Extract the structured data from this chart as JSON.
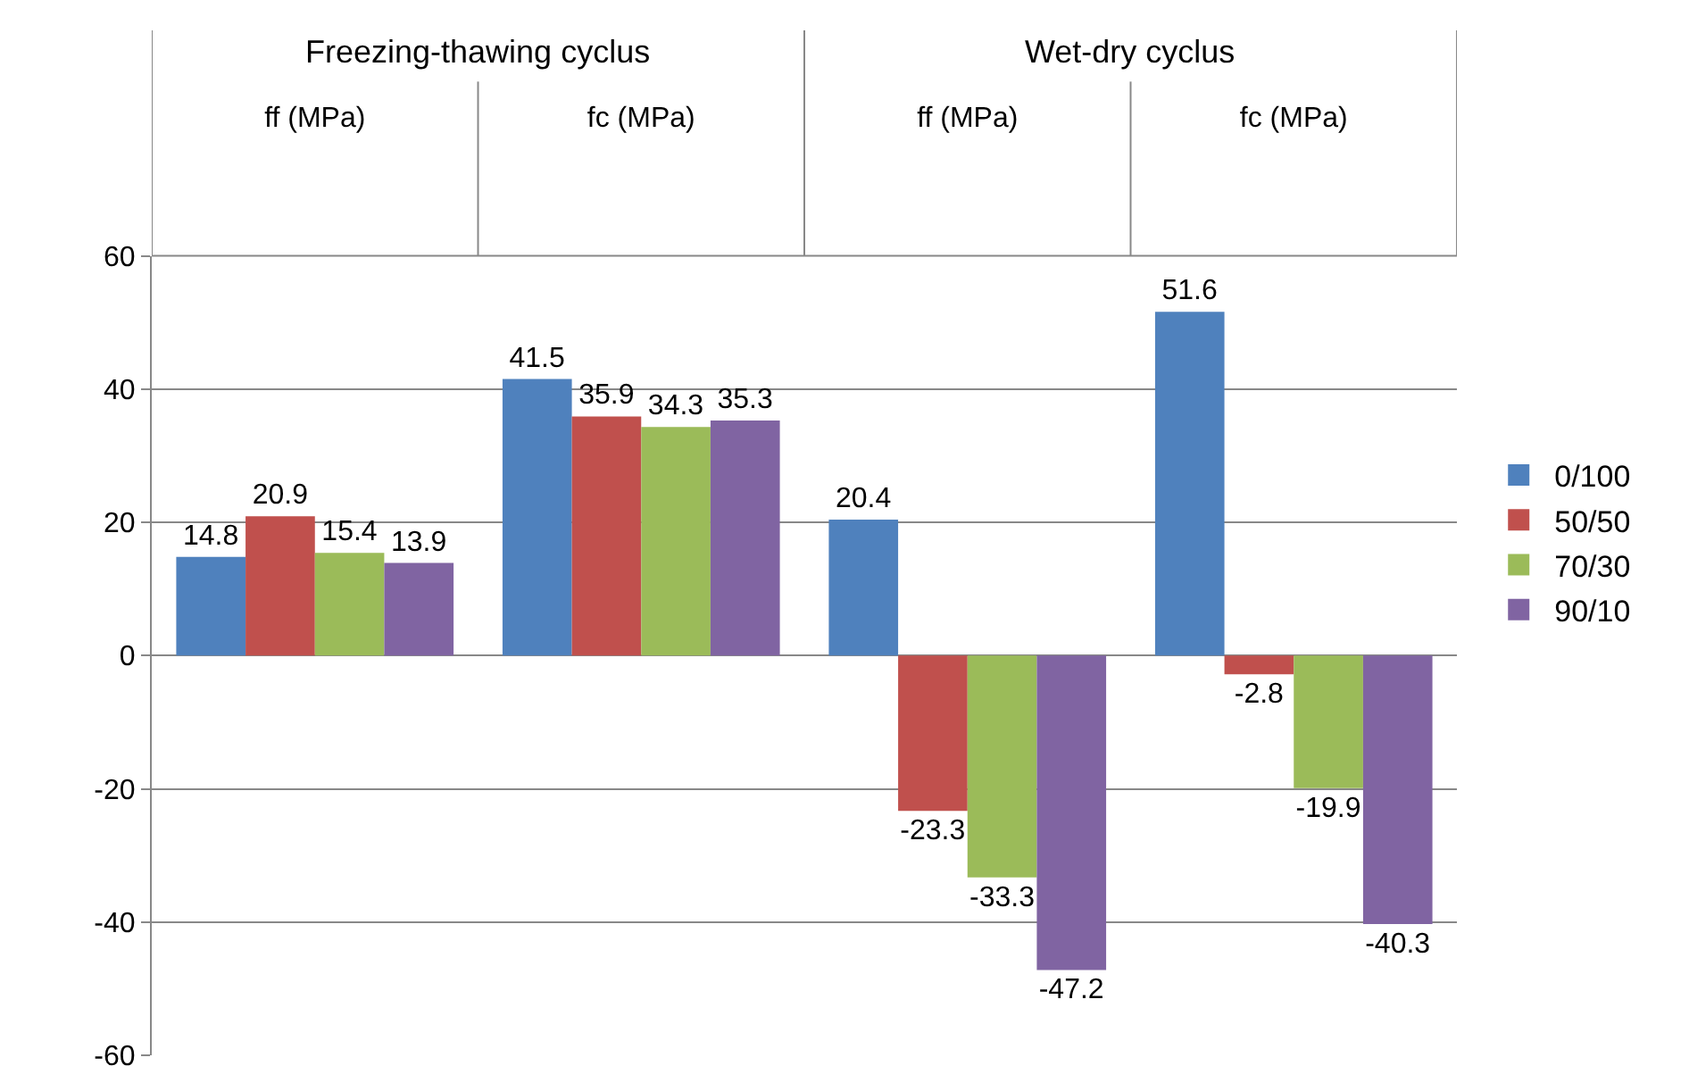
{
  "chart_data": {
    "type": "bar",
    "categories": [
      "ff (MPa)",
      "fc (MPa)",
      "ff (MPa)",
      "fc (MPa)"
    ],
    "annotations": [
      "Freezing-thawing cyclus",
      "Wet-dry cyclus"
    ],
    "series": [
      {
        "name": "0/100",
        "color": "#4f81bd",
        "values": [
          14.8,
          41.5,
          20.4,
          51.6
        ]
      },
      {
        "name": "50/50",
        "color": "#c0504d",
        "values": [
          20.9,
          35.9,
          -23.3,
          -2.8
        ]
      },
      {
        "name": "70/30",
        "color": "#9bbb59",
        "values": [
          15.4,
          34.3,
          -33.3,
          -19.9
        ]
      },
      {
        "name": "90/10",
        "color": "#8064a2",
        "values": [
          13.9,
          35.3,
          -47.2,
          -40.3
        ]
      }
    ],
    "ylim": [
      -60,
      60
    ],
    "yticks": [
      -60,
      -40,
      -20,
      0,
      20,
      40,
      60
    ],
    "grid": "y",
    "legend": "right",
    "data_labels": true
  }
}
